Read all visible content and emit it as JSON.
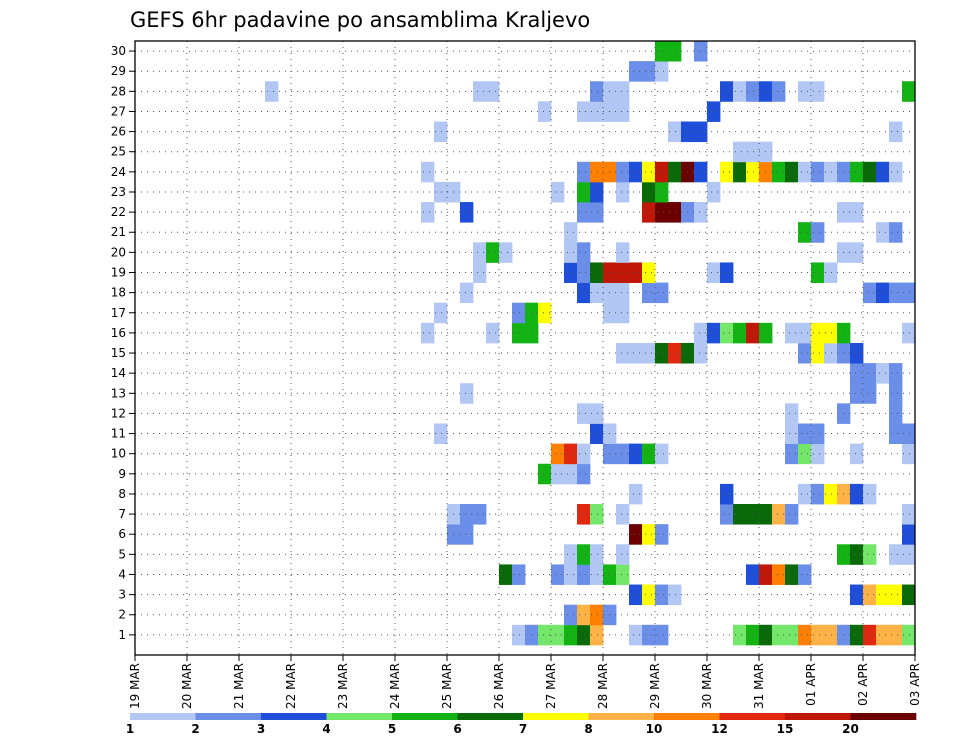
{
  "chart_data": {
    "type": "heatmap",
    "title": "GEFS 6hr padavine po ansamblima Kraljevo",
    "xlabel": "",
    "ylabel": "",
    "x_tick_labels": [
      "19 MAR",
      "20 MAR",
      "21 MAR",
      "22 MAR",
      "23 MAR",
      "24 MAR",
      "25 MAR",
      "26 MAR",
      "27 MAR",
      "28 MAR",
      "29 MAR",
      "30 MAR",
      "31 MAR",
      "01 APR",
      "02 APR",
      "03 APR"
    ],
    "y_tick_labels": [
      "1",
      "2",
      "3",
      "4",
      "5",
      "6",
      "7",
      "8",
      "9",
      "10",
      "11",
      "12",
      "13",
      "14",
      "15",
      "16",
      "17",
      "18",
      "19",
      "20",
      "21",
      "22",
      "23",
      "24",
      "25",
      "26",
      "27",
      "28",
      "29",
      "30"
    ],
    "ylim": [
      0,
      30
    ],
    "grid": true,
    "time_step_hours": 6,
    "columns_per_day": 4,
    "colorbar": {
      "labels": [
        "1",
        "2",
        "3",
        "4",
        "5",
        "6",
        "7",
        "8",
        "10",
        "12",
        "15",
        "20"
      ],
      "colors": [
        "#b3c7f5",
        "#6b8ee8",
        "#1f4fd8",
        "#74e66a",
        "#12b312",
        "#0a6a0a",
        "#ffff00",
        "#ffb347",
        "#ff7f00",
        "#e02810",
        "#c01808",
        "#6a0000"
      ]
    },
    "cells": [
      [
        1,
        29,
        0
      ],
      [
        1,
        30,
        1
      ],
      [
        1,
        31,
        3
      ],
      [
        1,
        32,
        3
      ],
      [
        1,
        33,
        4
      ],
      [
        1,
        34,
        5
      ],
      [
        1,
        35,
        7
      ],
      [
        1,
        38,
        0
      ],
      [
        1,
        39,
        1
      ],
      [
        1,
        40,
        1
      ],
      [
        1,
        46,
        3
      ],
      [
        1,
        47,
        4
      ],
      [
        1,
        48,
        5
      ],
      [
        1,
        49,
        3
      ],
      [
        1,
        50,
        3
      ],
      [
        1,
        51,
        8
      ],
      [
        1,
        52,
        7
      ],
      [
        1,
        53,
        7
      ],
      [
        1,
        54,
        1
      ],
      [
        1,
        55,
        5
      ],
      [
        1,
        56,
        9
      ],
      [
        1,
        57,
        7
      ],
      [
        1,
        58,
        7
      ],
      [
        1,
        59,
        3
      ],
      [
        2,
        33,
        1
      ],
      [
        2,
        34,
        7
      ],
      [
        2,
        35,
        8
      ],
      [
        2,
        36,
        1
      ],
      [
        3,
        38,
        2
      ],
      [
        3,
        39,
        6
      ],
      [
        3,
        40,
        1
      ],
      [
        3,
        41,
        0
      ],
      [
        3,
        55,
        2
      ],
      [
        3,
        56,
        7
      ],
      [
        3,
        57,
        6
      ],
      [
        3,
        58,
        6
      ],
      [
        3,
        59,
        5
      ],
      [
        4,
        28,
        5
      ],
      [
        4,
        29,
        1
      ],
      [
        4,
        32,
        1
      ],
      [
        4,
        33,
        0
      ],
      [
        4,
        34,
        1
      ],
      [
        4,
        35,
        0
      ],
      [
        4,
        36,
        4
      ],
      [
        4,
        37,
        3
      ],
      [
        4,
        47,
        2
      ],
      [
        4,
        48,
        10
      ],
      [
        4,
        49,
        8
      ],
      [
        4,
        50,
        5
      ],
      [
        4,
        51,
        1
      ],
      [
        5,
        33,
        0
      ],
      [
        5,
        34,
        4
      ],
      [
        5,
        35,
        0
      ],
      [
        5,
        37,
        0
      ],
      [
        5,
        54,
        4
      ],
      [
        5,
        55,
        5
      ],
      [
        5,
        56,
        3
      ],
      [
        5,
        58,
        0
      ],
      [
        5,
        59,
        0
      ],
      [
        6,
        24,
        1
      ],
      [
        6,
        25,
        1
      ],
      [
        6,
        38,
        11
      ],
      [
        6,
        39,
        6
      ],
      [
        6,
        40,
        1
      ],
      [
        6,
        59,
        2
      ],
      [
        7,
        24,
        0
      ],
      [
        7,
        25,
        1
      ],
      [
        7,
        26,
        1
      ],
      [
        7,
        34,
        9
      ],
      [
        7,
        35,
        3
      ],
      [
        7,
        37,
        0
      ],
      [
        7,
        45,
        1
      ],
      [
        7,
        46,
        5
      ],
      [
        7,
        47,
        5
      ],
      [
        7,
        48,
        5
      ],
      [
        7,
        49,
        7
      ],
      [
        7,
        50,
        1
      ],
      [
        7,
        59,
        0
      ],
      [
        8,
        38,
        0
      ],
      [
        8,
        45,
        2
      ],
      [
        8,
        51,
        0
      ],
      [
        8,
        52,
        1
      ],
      [
        8,
        53,
        6
      ],
      [
        8,
        54,
        7
      ],
      [
        8,
        55,
        2
      ],
      [
        8,
        56,
        0
      ],
      [
        9,
        31,
        4
      ],
      [
        9,
        32,
        0
      ],
      [
        9,
        33,
        0
      ],
      [
        9,
        34,
        1
      ],
      [
        10,
        32,
        8
      ],
      [
        10,
        33,
        9
      ],
      [
        10,
        34,
        0
      ],
      [
        10,
        36,
        1
      ],
      [
        10,
        37,
        1
      ],
      [
        10,
        38,
        2
      ],
      [
        10,
        39,
        4
      ],
      [
        10,
        40,
        0
      ],
      [
        10,
        50,
        1
      ],
      [
        10,
        51,
        3
      ],
      [
        10,
        52,
        0
      ],
      [
        10,
        55,
        0
      ],
      [
        10,
        59,
        0
      ],
      [
        11,
        23,
        0
      ],
      [
        11,
        35,
        2
      ],
      [
        11,
        36,
        0
      ],
      [
        11,
        50,
        0
      ],
      [
        11,
        51,
        1
      ],
      [
        11,
        52,
        1
      ],
      [
        11,
        58,
        1
      ],
      [
        11,
        59,
        1
      ],
      [
        12,
        34,
        0
      ],
      [
        12,
        35,
        0
      ],
      [
        12,
        50,
        0
      ],
      [
        12,
        54,
        1
      ],
      [
        12,
        58,
        1
      ],
      [
        13,
        25,
        0
      ],
      [
        13,
        55,
        1
      ],
      [
        13,
        56,
        1
      ],
      [
        13,
        58,
        1
      ],
      [
        14,
        55,
        1
      ],
      [
        14,
        56,
        1
      ],
      [
        14,
        57,
        0
      ],
      [
        14,
        58,
        1
      ],
      [
        15,
        37,
        0
      ],
      [
        15,
        38,
        0
      ],
      [
        15,
        39,
        0
      ],
      [
        15,
        40,
        5
      ],
      [
        15,
        41,
        9
      ],
      [
        15,
        42,
        5
      ],
      [
        15,
        43,
        0
      ],
      [
        15,
        51,
        1
      ],
      [
        15,
        52,
        6
      ],
      [
        15,
        53,
        0
      ],
      [
        15,
        54,
        1
      ],
      [
        15,
        55,
        2
      ],
      [
        16,
        22,
        0
      ],
      [
        16,
        27,
        0
      ],
      [
        16,
        29,
        4
      ],
      [
        16,
        30,
        4
      ],
      [
        16,
        43,
        0
      ],
      [
        16,
        44,
        2
      ],
      [
        16,
        45,
        3
      ],
      [
        16,
        46,
        4
      ],
      [
        16,
        47,
        10
      ],
      [
        16,
        48,
        4
      ],
      [
        16,
        50,
        0
      ],
      [
        16,
        51,
        0
      ],
      [
        16,
        52,
        6
      ],
      [
        16,
        53,
        6
      ],
      [
        16,
        54,
        4
      ],
      [
        16,
        59,
        0
      ],
      [
        17,
        23,
        0
      ],
      [
        17,
        29,
        1
      ],
      [
        17,
        30,
        4
      ],
      [
        17,
        31,
        6
      ],
      [
        17,
        36,
        0
      ],
      [
        17,
        37,
        0
      ],
      [
        18,
        25,
        0
      ],
      [
        18,
        34,
        2
      ],
      [
        18,
        35,
        0
      ],
      [
        18,
        36,
        0
      ],
      [
        18,
        37,
        0
      ],
      [
        18,
        39,
        1
      ],
      [
        18,
        40,
        1
      ],
      [
        18,
        56,
        1
      ],
      [
        18,
        57,
        2
      ],
      [
        18,
        58,
        1
      ],
      [
        18,
        59,
        1
      ],
      [
        19,
        26,
        0
      ],
      [
        19,
        33,
        2
      ],
      [
        19,
        34,
        1
      ],
      [
        19,
        35,
        5
      ],
      [
        19,
        36,
        10
      ],
      [
        19,
        37,
        10
      ],
      [
        19,
        38,
        10
      ],
      [
        19,
        39,
        6
      ],
      [
        19,
        44,
        0
      ],
      [
        19,
        45,
        2
      ],
      [
        19,
        52,
        4
      ],
      [
        19,
        53,
        0
      ],
      [
        20,
        26,
        0
      ],
      [
        20,
        27,
        4
      ],
      [
        20,
        28,
        0
      ],
      [
        20,
        33,
        0
      ],
      [
        20,
        34,
        1
      ],
      [
        20,
        37,
        0
      ],
      [
        20,
        54,
        0
      ],
      [
        20,
        55,
        0
      ],
      [
        21,
        33,
        0
      ],
      [
        21,
        51,
        4
      ],
      [
        21,
        52,
        1
      ],
      [
        21,
        57,
        0
      ],
      [
        21,
        58,
        1
      ],
      [
        22,
        22,
        0
      ],
      [
        22,
        25,
        2
      ],
      [
        22,
        34,
        1
      ],
      [
        22,
        35,
        1
      ],
      [
        22,
        39,
        10
      ],
      [
        22,
        40,
        11
      ],
      [
        22,
        41,
        11
      ],
      [
        22,
        42,
        1
      ],
      [
        22,
        43,
        0
      ],
      [
        22,
        54,
        0
      ],
      [
        22,
        55,
        0
      ],
      [
        23,
        23,
        0
      ],
      [
        23,
        24,
        0
      ],
      [
        23,
        32,
        0
      ],
      [
        23,
        34,
        4
      ],
      [
        23,
        35,
        2
      ],
      [
        23,
        37,
        0
      ],
      [
        23,
        39,
        5
      ],
      [
        23,
        40,
        4
      ],
      [
        23,
        44,
        0
      ],
      [
        24,
        22,
        0
      ],
      [
        24,
        34,
        1
      ],
      [
        24,
        35,
        8
      ],
      [
        24,
        36,
        8
      ],
      [
        24,
        37,
        1
      ],
      [
        24,
        38,
        2
      ],
      [
        24,
        39,
        6
      ],
      [
        24,
        40,
        10
      ],
      [
        24,
        41,
        5
      ],
      [
        24,
        42,
        11
      ],
      [
        24,
        43,
        2
      ],
      [
        24,
        45,
        6
      ],
      [
        24,
        46,
        5
      ],
      [
        24,
        47,
        6
      ],
      [
        24,
        48,
        8
      ],
      [
        24,
        49,
        4
      ],
      [
        24,
        50,
        5
      ],
      [
        24,
        51,
        0
      ],
      [
        24,
        52,
        1
      ],
      [
        24,
        53,
        0
      ],
      [
        24,
        54,
        1
      ],
      [
        24,
        55,
        4
      ],
      [
        24,
        56,
        5
      ],
      [
        24,
        57,
        2
      ],
      [
        24,
        58,
        0
      ],
      [
        25,
        46,
        0
      ],
      [
        25,
        47,
        0
      ],
      [
        25,
        48,
        0
      ],
      [
        26,
        23,
        0
      ],
      [
        26,
        41,
        0
      ],
      [
        26,
        42,
        2
      ],
      [
        26,
        43,
        2
      ],
      [
        26,
        58,
        0
      ],
      [
        27,
        31,
        0
      ],
      [
        27,
        34,
        0
      ],
      [
        27,
        35,
        0
      ],
      [
        27,
        36,
        0
      ],
      [
        27,
        37,
        0
      ],
      [
        27,
        44,
        2
      ],
      [
        28,
        10,
        0
      ],
      [
        28,
        26,
        0
      ],
      [
        28,
        27,
        0
      ],
      [
        28,
        35,
        1
      ],
      [
        28,
        36,
        0
      ],
      [
        28,
        37,
        0
      ],
      [
        28,
        45,
        2
      ],
      [
        28,
        46,
        0
      ],
      [
        28,
        47,
        1
      ],
      [
        28,
        48,
        2
      ],
      [
        28,
        49,
        1
      ],
      [
        28,
        51,
        0
      ],
      [
        28,
        52,
        0
      ],
      [
        28,
        59,
        4
      ],
      [
        29,
        38,
        1
      ],
      [
        29,
        39,
        1
      ],
      [
        29,
        40,
        0
      ],
      [
        30,
        40,
        4
      ],
      [
        30,
        41,
        4
      ],
      [
        30,
        43,
        1
      ]
    ]
  }
}
